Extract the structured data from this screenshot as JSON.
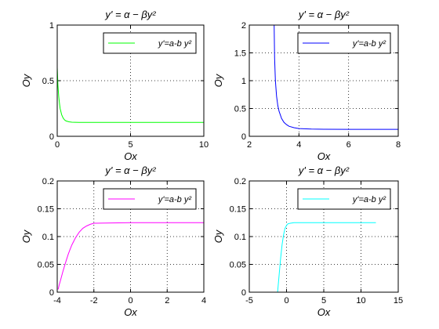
{
  "chart_data": [
    {
      "type": "line",
      "title": "y' = α − βy²",
      "xlabel": "Ox",
      "ylabel": "Oy",
      "xlim": [
        0,
        10
      ],
      "ylim": [
        0,
        1
      ],
      "xticks": [
        "0",
        "5",
        "10"
      ],
      "yticks": [
        "0",
        "0.5",
        "1"
      ],
      "grid": true,
      "legend_position": "top-right",
      "series": [
        {
          "name": "y'=a-b y²",
          "color": "#00ff00",
          "x": [
            0,
            0.05,
            0.1,
            0.15,
            0.2,
            0.3,
            0.4,
            0.5,
            0.6,
            0.8,
            1.0,
            1.2,
            1.5,
            2.0,
            3.0,
            5.0,
            7.0,
            10.0
          ],
          "y": [
            0.62,
            0.46,
            0.36,
            0.3,
            0.25,
            0.195,
            0.165,
            0.148,
            0.138,
            0.13,
            0.127,
            0.126,
            0.125,
            0.125,
            0.125,
            0.125,
            0.125,
            0.125
          ]
        }
      ]
    },
    {
      "type": "line",
      "title": "y' = α − βy²",
      "xlabel": "Ox",
      "ylabel": "Oy",
      "xlim": [
        2,
        8
      ],
      "ylim": [
        0,
        2
      ],
      "xticks": [
        "2",
        "4",
        "6",
        "8"
      ],
      "yticks": [
        "0",
        "0.5",
        "1",
        "1.5",
        "2"
      ],
      "grid": true,
      "legend_position": "top-right",
      "series": [
        {
          "name": "y'=a-b y²",
          "color": "#0000ff",
          "x": [
            3.0,
            3.02,
            3.05,
            3.1,
            3.15,
            3.2,
            3.3,
            3.4,
            3.5,
            3.6,
            3.8,
            4.0,
            4.5,
            5.0,
            6.0,
            7.0,
            8.0
          ],
          "y": [
            2.0,
            1.4,
            1.0,
            0.72,
            0.55,
            0.45,
            0.32,
            0.25,
            0.21,
            0.18,
            0.155,
            0.14,
            0.13,
            0.127,
            0.125,
            0.125,
            0.125
          ]
        }
      ]
    },
    {
      "type": "line",
      "title": "y' = α − βy²",
      "xlabel": "Ox",
      "ylabel": "Oy",
      "xlim": [
        -4,
        4
      ],
      "ylim": [
        0,
        0.2
      ],
      "xticks": [
        "-4",
        "-2",
        "0",
        "2",
        "4"
      ],
      "yticks": [
        "0",
        "0.05",
        "0.1",
        "0.15",
        "0.2"
      ],
      "grid": true,
      "legend_position": "top-right",
      "series": [
        {
          "name": "y'=a-b y²",
          "color": "#ff00ff",
          "x": [
            -3.95,
            -3.9,
            -3.8,
            -3.7,
            -3.6,
            -3.5,
            -3.4,
            -3.3,
            -3.2,
            -3.0,
            -2.8,
            -2.6,
            -2.4,
            -2.2,
            -2.0,
            0,
            2,
            4
          ],
          "y": [
            0.005,
            0.012,
            0.024,
            0.036,
            0.047,
            0.058,
            0.068,
            0.077,
            0.085,
            0.098,
            0.108,
            0.115,
            0.119,
            0.122,
            0.124,
            0.125,
            0.125,
            0.125
          ]
        }
      ]
    },
    {
      "type": "line",
      "title": "y' = α − βy²",
      "xlabel": "Ox",
      "ylabel": "Oy",
      "xlim": [
        -5,
        15
      ],
      "ylim": [
        0,
        0.2
      ],
      "xticks": [
        "-5",
        "0",
        "5",
        "10",
        "15"
      ],
      "yticks": [
        "0",
        "0.05",
        "0.1",
        "0.15",
        "0.2"
      ],
      "grid": true,
      "legend_position": "top-right",
      "series": [
        {
          "name": "y'=a-b y²",
          "color": "#00ffff",
          "x": [
            -1.2,
            -1.0,
            -0.8,
            -0.6,
            -0.4,
            -0.2,
            0,
            0.2,
            0.5,
            1.0,
            2,
            5,
            8,
            12
          ],
          "y": [
            0.0,
            0.03,
            0.06,
            0.085,
            0.103,
            0.115,
            0.12,
            0.123,
            0.124,
            0.125,
            0.125,
            0.125,
            0.125,
            0.125
          ]
        }
      ]
    }
  ]
}
